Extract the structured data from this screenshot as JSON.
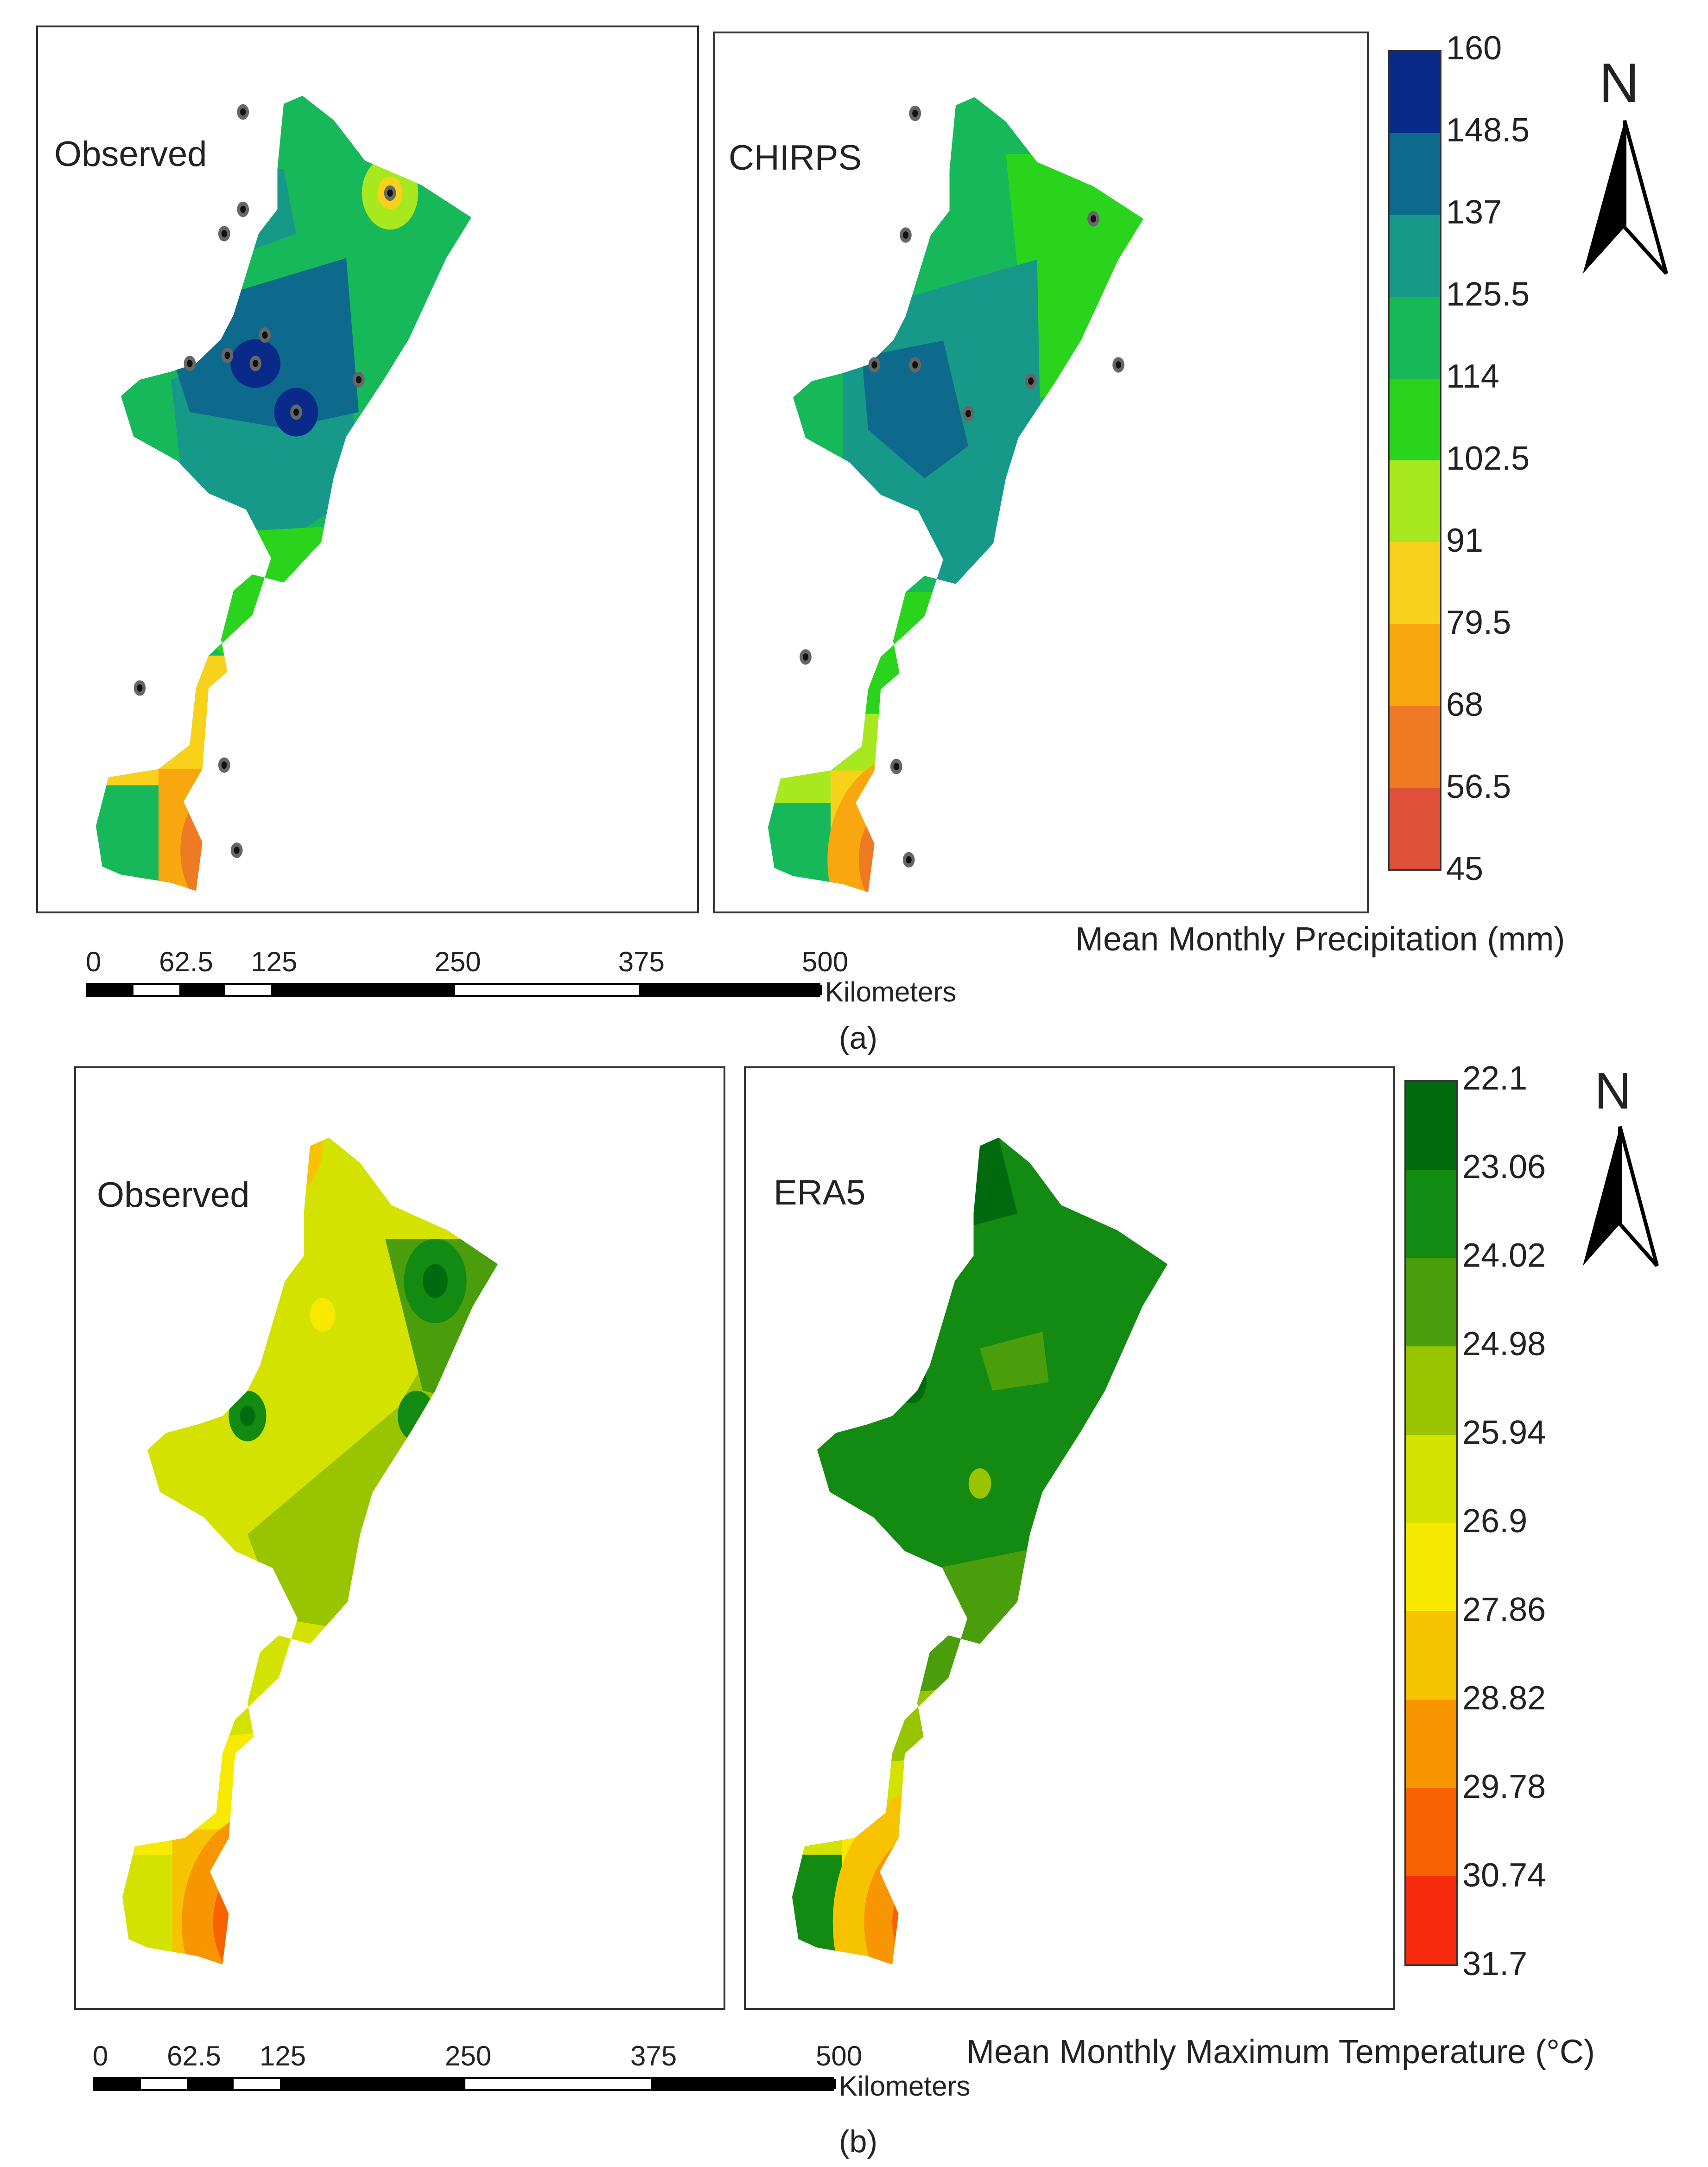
{
  "panel_a": {
    "maps": [
      {
        "label": "Observed"
      },
      {
        "label": "CHIRPS"
      }
    ],
    "legend": {
      "title": "Mean Monthly Precipitation (mm)",
      "values": [
        "160",
        "148.5",
        "137",
        "125.5",
        "114",
        "102.5",
        "91",
        "79.5",
        "68",
        "56.5",
        "45"
      ],
      "colors": [
        "#0a2a8a",
        "#0e6a8c",
        "#17998a",
        "#17b85a",
        "#2bd41c",
        "#a7e81e",
        "#f8d21a",
        "#f8a70f",
        "#ef7a24",
        "#e0503a"
      ]
    },
    "north": "N",
    "scale": {
      "ticks": [
        "0",
        "62.5",
        "125",
        "250",
        "375",
        "500"
      ],
      "unit": "Kilometers"
    },
    "caption": "(a)"
  },
  "panel_b": {
    "maps": [
      {
        "label": "Observed"
      },
      {
        "label": "ERA5"
      }
    ],
    "legend": {
      "title": "Mean Monthly Maximum Temperature (°C)",
      "values": [
        "22.1",
        "23.06",
        "24.02",
        "24.98",
        "25.94",
        "26.9",
        "27.86",
        "28.82",
        "29.78",
        "30.74",
        "31.7"
      ],
      "colors": [
        "#006b0e",
        "#138a12",
        "#4a9e0b",
        "#98c400",
        "#d4e200",
        "#f7ea00",
        "#f7c300",
        "#f79600",
        "#f76300",
        "#f72a10"
      ]
    },
    "north": "N",
    "scale": {
      "ticks": [
        "0",
        "62.5",
        "125",
        "250",
        "375",
        "500"
      ],
      "unit": "Kilometers"
    },
    "caption": "(b)"
  }
}
